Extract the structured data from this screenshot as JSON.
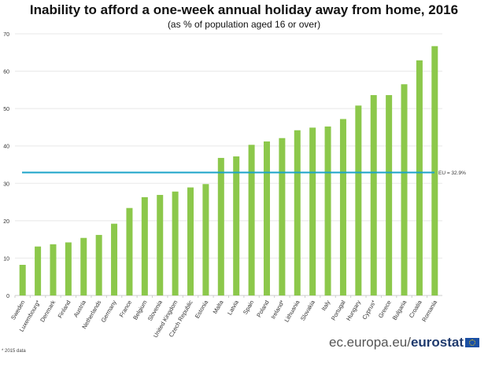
{
  "chart_data": {
    "type": "bar",
    "title": "Inability to afford a one-week annual holiday away from home, 2016",
    "subtitle": "(as % of population aged 16 or over)",
    "categories": [
      "Sweden",
      "Luxembourg*",
      "Denmark",
      "Finland",
      "Austria",
      "Netherlands",
      "Germany",
      "France",
      "Belgium",
      "Slovenia",
      "United Kingdom",
      "Czech Republic",
      "Estonia",
      "Malta",
      "Latvia",
      "Spain",
      "Poland",
      "Ireland*",
      "Lithuania",
      "Slovakia",
      "Italy",
      "Portugal",
      "Hungary",
      "Cyprus*",
      "Greece",
      "Bulgaria",
      "Croatia",
      "Romania"
    ],
    "values": [
      8.2,
      13.1,
      13.7,
      14.2,
      15.4,
      16.2,
      19.2,
      23.4,
      26.3,
      26.9,
      27.8,
      28.9,
      29.8,
      36.8,
      37.2,
      40.3,
      41.2,
      42.1,
      44.2,
      44.9,
      45.2,
      47.2,
      50.8,
      53.6,
      53.6,
      56.5,
      62.9,
      66.7
    ],
    "ylim": [
      0,
      70
    ],
    "yticks": [
      0,
      10,
      20,
      30,
      40,
      50,
      60,
      70
    ],
    "grid": true,
    "reference_line": {
      "value": 32.9,
      "label": "EU = 32.9%",
      "color": "#1aa3c8"
    },
    "bar_color": "#8cc84b",
    "footnote": "* 2015 data"
  },
  "source": {
    "prefix": "ec.europa.eu/",
    "brand": "eurostat"
  }
}
